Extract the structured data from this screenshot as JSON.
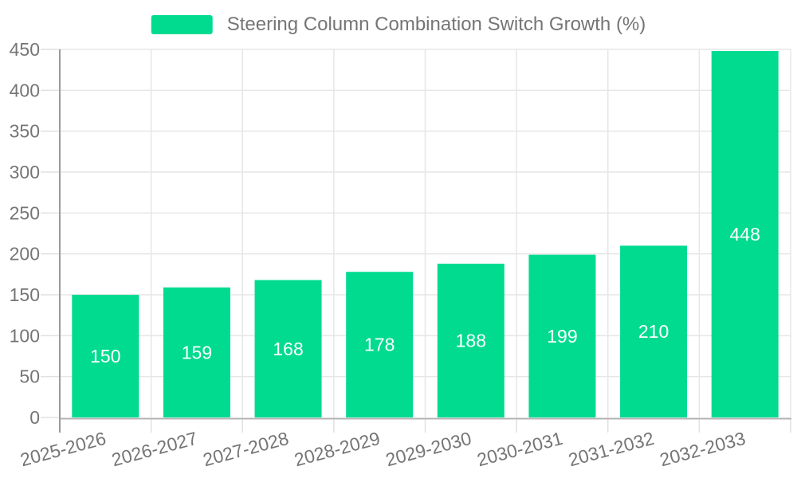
{
  "colors": {
    "bar": "#00DB90",
    "label_text": "#757575",
    "value_label": "#FFFFFF",
    "y_axis_line": "#9B9B9B",
    "x_axis_line": "#B3B3B3",
    "gridline": "#E6E6E6",
    "tick": "#E0E0E0",
    "background": "#FFFFFF"
  },
  "legend": {
    "label": "Steering Column Combination Switch Growth (%)",
    "swatch_color": "#00DB90"
  },
  "chart_data": {
    "type": "bar",
    "title": "Steering Column Combination Switch Growth (%)",
    "categories": [
      "2025-2026",
      "2026-2027",
      "2027-2028",
      "2028-2029",
      "2029-2030",
      "2030-2031",
      "2031-2032",
      "2032-2033"
    ],
    "values": [
      150,
      159,
      168,
      178,
      188,
      199,
      210,
      448
    ],
    "value_labels": [
      "150",
      "159",
      "168",
      "178",
      "188",
      "199",
      "210",
      "448"
    ],
    "xlabel": "",
    "ylabel": "",
    "ylim": [
      0,
      450
    ],
    "yticks": [
      0,
      50,
      100,
      150,
      200,
      250,
      300,
      350,
      400,
      450
    ],
    "grid": true,
    "legend_position": "top-center",
    "bar_color": "#00DB90",
    "value_label_position": "inside-center",
    "x_tick_label_rotation_deg": -15
  }
}
